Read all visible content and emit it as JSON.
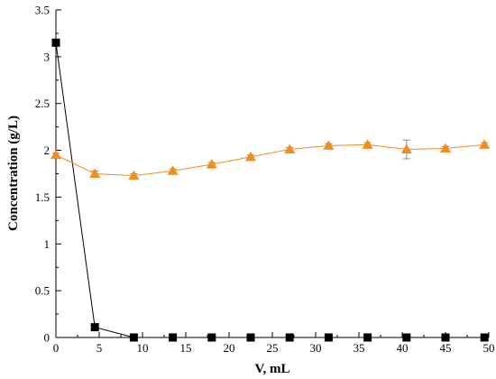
{
  "chart_data": {
    "type": "scatter",
    "xlabel": "V, mL",
    "ylabel": "Concentration (g/L)",
    "xlim": [
      0,
      50
    ],
    "ylim": [
      0,
      3.5
    ],
    "xticks": [
      "0",
      "5",
      "10",
      "15",
      "20",
      "25",
      "30",
      "35",
      "40",
      "45",
      "50"
    ],
    "yticks": [
      "0",
      "0.5",
      "1",
      "1.5",
      "2",
      "2.5",
      "3",
      "3.5"
    ],
    "grid": false,
    "legend": "none",
    "series": [
      {
        "marker": "square",
        "line": true,
        "color": "#000000",
        "x": [
          0,
          4.5,
          9,
          13.5,
          18,
          22.5,
          27,
          31.5,
          36,
          40.5,
          45,
          49.5
        ],
        "y": [
          3.15,
          0.11,
          0.0,
          0.0,
          0.0,
          0.0,
          0.0,
          0.0,
          0.0,
          0.0,
          0.0,
          0.0
        ]
      },
      {
        "marker": "triangle",
        "line": true,
        "color": "#f28c1c",
        "x": [
          0,
          4.5,
          9,
          13.5,
          18,
          22.5,
          27,
          31.5,
          36,
          40.5,
          45,
          49.5
        ],
        "y": [
          1.95,
          1.75,
          1.73,
          1.78,
          1.85,
          1.93,
          2.01,
          2.05,
          2.06,
          2.01,
          2.02,
          2.06
        ],
        "error": [
          0.02,
          0.03,
          0.02,
          0.02,
          0.02,
          0.02,
          0.02,
          0.02,
          0.02,
          0.1,
          0.02,
          0.02
        ]
      }
    ]
  }
}
